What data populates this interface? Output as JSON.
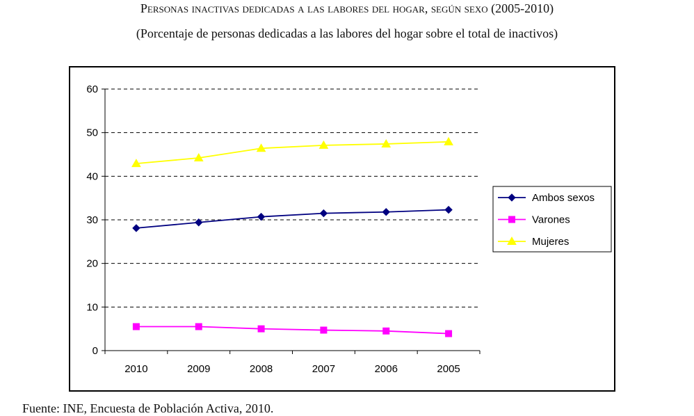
{
  "title": "Personas inactivas dedicadas a las labores del hogar, según sexo (2005-2010)",
  "subtitle": "(Porcentaje de personas dedicadas a las labores del hogar sobre el total de inactivos)",
  "source": "Fuente: INE, Encuesta de Población Activa, 2010.",
  "chart_data": {
    "type": "line",
    "categories": [
      "2010",
      "2009",
      "2008",
      "2007",
      "2006",
      "2005"
    ],
    "ylim": [
      0,
      60
    ],
    "yticks": [
      0,
      10,
      20,
      30,
      40,
      50,
      60
    ],
    "grid": true,
    "legend_position": "right",
    "series": [
      {
        "name": "Ambos sexos",
        "color": "#000080",
        "marker": "diamond",
        "values": [
          28.1,
          29.4,
          30.7,
          31.5,
          31.8,
          32.3
        ]
      },
      {
        "name": "Varones",
        "color": "#ff00ff",
        "marker": "square",
        "values": [
          5.5,
          5.5,
          5.0,
          4.7,
          4.5,
          3.9
        ]
      },
      {
        "name": "Mujeres",
        "color": "#ffff00",
        "marker": "triangle",
        "values": [
          42.9,
          44.2,
          46.4,
          47.1,
          47.4,
          47.9
        ]
      }
    ]
  }
}
